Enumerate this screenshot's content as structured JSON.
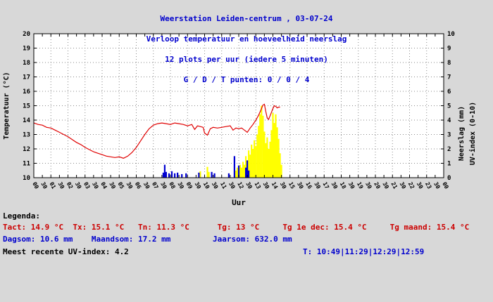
{
  "titles": [
    "Weerstation Leiden-centrum , 03-07-24",
    "Verloop temperatuur en hoeveelheid neerslag",
    "12 plots per uur (iedere 5 minuten)",
    "G / D / T punten: 0 / 0 / 4"
  ],
  "colors": {
    "background": "#d8d8d8",
    "plot_background": "#ffffff",
    "title_text": "#0000cd",
    "temperature_line": "#e00000",
    "rain_blue": "#0000d0",
    "rain_yellow": "#ffff00",
    "legend_red": "#cc0000",
    "legend_blue": "#0000cd"
  },
  "legend": {
    "heading": "Legenda:",
    "temps": "Tact: 14.9 °C  Tx: 15.1 °C   Tn: 11.3 °C      Tg: 13 °C     Tg 1e dec: 15.4 °C     Tg maand: 15.4 °C",
    "sums": "Dagsom: 10.6 mm    Maandsom: 17.2 mm         Jaarsom: 632.0 mm",
    "uv": "Meest recente UV-index: 4.2",
    "times": "T: 10:49|11:29|12:29|12:59"
  },
  "chart_data": {
    "type": "composite",
    "title": "Weerstation Leiden-centrum , 03-07-24",
    "subtitle": "Verloop temperatuur en hoeveelheid neerslag",
    "xlabel": "Uur",
    "grid": true,
    "x_axis": {
      "min": 0,
      "max": 24,
      "tick_interval_hours": 0.5,
      "ticks": [
        "00",
        "30",
        "01",
        "30",
        "02",
        "30",
        "03",
        "30",
        "04",
        "30",
        "05",
        "30",
        "06",
        "30",
        "07",
        "30",
        "08",
        "30",
        "09",
        "30",
        "10",
        "30",
        "11",
        "30",
        "12",
        "30",
        "13",
        "30",
        "14",
        "30",
        "15",
        "30",
        "16",
        "30",
        "17",
        "30",
        "18",
        "30",
        "19",
        "30",
        "20",
        "30",
        "21",
        "30",
        "22",
        "30",
        "23",
        "30",
        "00"
      ]
    },
    "left_axis": {
      "label": "Temperatuur (°C)",
      "min": 10,
      "max": 20,
      "ticks": [
        "10",
        "11",
        "12",
        "13",
        "14",
        "15",
        "16",
        "17",
        "18",
        "19",
        "20"
      ]
    },
    "right_axis": {
      "labels": [
        "Neerslag (mm)",
        "UV-index (0-10)"
      ],
      "min": 0,
      "max": 10,
      "ticks": [
        "0",
        "1",
        "2",
        "3",
        "4",
        "5",
        "6",
        "7",
        "8",
        "9",
        "10"
      ]
    },
    "series": [
      {
        "name": "neerslag-geel",
        "type": "bar",
        "color": "#ffff00",
        "points": [
          [
            9.75,
            0.45
          ],
          [
            10.167,
            0.75
          ],
          [
            10.25,
            0.4
          ],
          [
            11.833,
            0.5
          ],
          [
            11.917,
            0.7
          ],
          [
            12.0,
            0.5
          ],
          [
            12.083,
            0.9
          ],
          [
            12.167,
            0.7
          ],
          [
            12.25,
            1.1
          ],
          [
            12.333,
            0.9
          ],
          [
            12.417,
            1.5
          ],
          [
            12.5,
            1.2
          ],
          [
            12.583,
            1.9
          ],
          [
            12.667,
            1.6
          ],
          [
            12.75,
            2.3
          ],
          [
            12.833,
            2.0
          ],
          [
            12.917,
            2.6
          ],
          [
            13.0,
            2.2
          ],
          [
            13.083,
            3.0
          ],
          [
            13.167,
            3.6
          ],
          [
            13.25,
            4.4
          ],
          [
            13.333,
            5.0
          ],
          [
            13.417,
            4.3
          ],
          [
            13.5,
            3.2
          ],
          [
            13.583,
            2.4
          ],
          [
            13.667,
            2.8
          ],
          [
            13.75,
            2.0
          ],
          [
            13.833,
            2.5
          ],
          [
            13.917,
            3.3
          ],
          [
            14.0,
            4.5
          ],
          [
            14.083,
            3.8
          ],
          [
            14.167,
            4.4
          ],
          [
            14.25,
            3.5
          ],
          [
            14.333,
            2.7
          ],
          [
            14.417,
            1.7
          ],
          [
            14.5,
            0.9
          ]
        ]
      },
      {
        "name": "neerslag-blauw",
        "type": "bar",
        "color": "#0000d0",
        "points": [
          [
            7.583,
            0.35
          ],
          [
            7.667,
            0.9
          ],
          [
            7.75,
            0.4
          ],
          [
            7.917,
            0.3
          ],
          [
            8.083,
            0.45
          ],
          [
            8.25,
            0.3
          ],
          [
            8.417,
            0.35
          ],
          [
            8.667,
            0.25
          ],
          [
            8.917,
            0.3
          ],
          [
            9.667,
            0.35
          ],
          [
            10.417,
            0.4
          ],
          [
            10.583,
            0.3
          ],
          [
            11.417,
            0.3
          ],
          [
            11.75,
            1.5
          ],
          [
            12.0,
            0.85
          ],
          [
            12.417,
            0.7
          ],
          [
            12.5,
            1.2
          ],
          [
            12.583,
            0.5
          ]
        ]
      },
      {
        "name": "temperatuur",
        "type": "line",
        "color": "#e00000",
        "points": [
          [
            0,
            13.8
          ],
          [
            0.25,
            13.7
          ],
          [
            0.5,
            13.65
          ],
          [
            0.75,
            13.5
          ],
          [
            1,
            13.45
          ],
          [
            1.25,
            13.3
          ],
          [
            1.5,
            13.15
          ],
          [
            1.75,
            13.0
          ],
          [
            2,
            12.85
          ],
          [
            2.25,
            12.65
          ],
          [
            2.5,
            12.45
          ],
          [
            2.75,
            12.3
          ],
          [
            3,
            12.1
          ],
          [
            3.25,
            11.95
          ],
          [
            3.5,
            11.8
          ],
          [
            3.75,
            11.7
          ],
          [
            4,
            11.6
          ],
          [
            4.25,
            11.5
          ],
          [
            4.5,
            11.45
          ],
          [
            4.75,
            11.4
          ],
          [
            5,
            11.45
          ],
          [
            5.25,
            11.35
          ],
          [
            5.5,
            11.5
          ],
          [
            5.75,
            11.75
          ],
          [
            6,
            12.1
          ],
          [
            6.25,
            12.55
          ],
          [
            6.5,
            13.0
          ],
          [
            6.75,
            13.4
          ],
          [
            7,
            13.65
          ],
          [
            7.25,
            13.75
          ],
          [
            7.5,
            13.8
          ],
          [
            7.75,
            13.75
          ],
          [
            8,
            13.7
          ],
          [
            8.25,
            13.8
          ],
          [
            8.5,
            13.75
          ],
          [
            8.75,
            13.7
          ],
          [
            9,
            13.6
          ],
          [
            9.25,
            13.7
          ],
          [
            9.417,
            13.35
          ],
          [
            9.583,
            13.6
          ],
          [
            9.75,
            13.55
          ],
          [
            9.917,
            13.5
          ],
          [
            10,
            13.1
          ],
          [
            10.167,
            12.95
          ],
          [
            10.333,
            13.4
          ],
          [
            10.5,
            13.5
          ],
          [
            10.75,
            13.45
          ],
          [
            11,
            13.5
          ],
          [
            11.25,
            13.55
          ],
          [
            11.5,
            13.6
          ],
          [
            11.667,
            13.3
          ],
          [
            11.833,
            13.45
          ],
          [
            12,
            13.4
          ],
          [
            12.167,
            13.45
          ],
          [
            12.333,
            13.3
          ],
          [
            12.5,
            13.15
          ],
          [
            12.667,
            13.45
          ],
          [
            12.833,
            13.7
          ],
          [
            13,
            14.0
          ],
          [
            13.167,
            14.35
          ],
          [
            13.333,
            14.8
          ],
          [
            13.417,
            15.05
          ],
          [
            13.5,
            15.1
          ],
          [
            13.583,
            14.6
          ],
          [
            13.667,
            14.15
          ],
          [
            13.75,
            14.05
          ],
          [
            13.833,
            14.3
          ],
          [
            13.917,
            14.55
          ],
          [
            14,
            14.8
          ],
          [
            14.083,
            15.0
          ],
          [
            14.167,
            14.95
          ],
          [
            14.25,
            14.85
          ],
          [
            14.333,
            14.9
          ],
          [
            14.417,
            14.9
          ]
        ]
      }
    ]
  }
}
